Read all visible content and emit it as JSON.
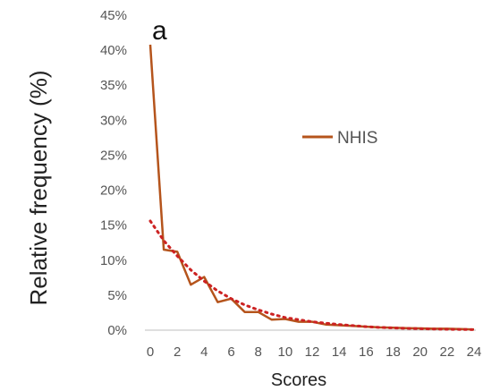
{
  "chart_data": {
    "type": "line",
    "panel_label": "a",
    "xlabel": "Scores",
    "ylabel": "Relative frequency  (%)",
    "x_ticks": [
      "0",
      "2",
      "4",
      "6",
      "8",
      "10",
      "12",
      "14",
      "16",
      "18",
      "20",
      "22",
      "24"
    ],
    "y_ticks": [
      "0%",
      "5%",
      "10%",
      "15%",
      "20%",
      "25%",
      "30%",
      "35%",
      "40%",
      "45%"
    ],
    "xlim": [
      0,
      24
    ],
    "ylim": [
      0,
      45
    ],
    "grid": false,
    "legend_position": "upper-right",
    "series": [
      {
        "name": "NHIS",
        "color": "#b5541c",
        "style": "solid",
        "x": [
          0,
          1,
          2,
          3,
          4,
          5,
          6,
          7,
          8,
          9,
          10,
          11,
          12,
          13,
          14,
          15,
          16,
          17,
          18,
          19,
          20,
          21,
          22,
          23,
          24
        ],
        "y": [
          40.8,
          11.5,
          11.2,
          6.5,
          7.6,
          4.0,
          4.5,
          2.6,
          2.6,
          1.5,
          1.6,
          1.2,
          1.2,
          0.8,
          0.7,
          0.6,
          0.5,
          0.4,
          0.35,
          0.3,
          0.25,
          0.2,
          0.2,
          0.15,
          0.1
        ]
      },
      {
        "color": "#cc2222",
        "style": "dotted",
        "x": [
          0,
          1,
          2,
          3,
          4,
          5,
          6,
          7,
          8,
          9,
          10,
          11,
          12,
          13,
          14,
          15,
          16,
          17,
          18,
          19,
          20,
          21,
          22,
          23,
          24
        ],
        "y": [
          15.6,
          12.8,
          10.6,
          8.6,
          7.0,
          5.6,
          4.5,
          3.6,
          2.9,
          2.3,
          1.8,
          1.5,
          1.2,
          1.0,
          0.8,
          0.65,
          0.5,
          0.4,
          0.32,
          0.26,
          0.2,
          0.16,
          0.13,
          0.1,
          0.08
        ]
      }
    ]
  }
}
